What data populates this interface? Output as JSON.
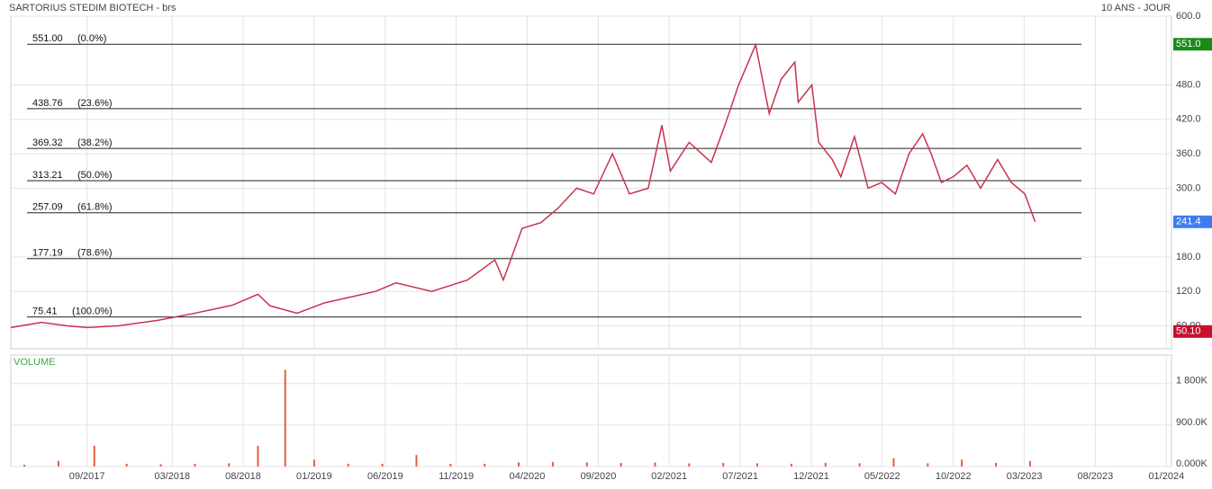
{
  "header": {
    "title": "SARTORIUS STEDIM BIOTECH - brs",
    "period": "10 ANS - JOUR"
  },
  "chart_data": [
    {
      "type": "line",
      "color": "#c8334d",
      "x": [
        2017.22,
        2017.4,
        2017.55,
        2017.67,
        2017.85,
        2018.09,
        2018.3,
        2018.52,
        2018.67,
        2018.74,
        2018.9,
        2019.06,
        2019.36,
        2019.48,
        2019.69,
        2019.9,
        2020.06,
        2020.11,
        2020.22,
        2020.33,
        2020.43,
        2020.54,
        2020.64,
        2020.75,
        2020.85,
        2020.96,
        2021.04,
        2021.09,
        2021.2,
        2021.33,
        2021.41,
        2021.49,
        2021.59,
        2021.67,
        2021.74,
        2021.82,
        2021.84,
        2021.92,
        2021.96,
        2022.04,
        2022.09,
        2022.17,
        2022.25,
        2022.33,
        2022.41,
        2022.49,
        2022.57,
        2022.62,
        2022.68,
        2022.75,
        2022.83,
        2022.91,
        2023.01,
        2023.09,
        2023.17,
        2023.23
      ],
      "values": [
        57,
        66,
        60,
        57,
        60,
        70,
        82,
        96,
        115,
        95,
        82,
        100,
        120,
        135,
        120,
        140,
        175,
        140,
        230,
        240,
        265,
        300,
        290,
        360,
        290,
        300,
        410,
        330,
        380,
        345,
        410,
        480,
        550,
        430,
        490,
        520,
        450,
        480,
        380,
        350,
        320,
        390,
        300,
        310,
        290,
        360,
        395,
        360,
        310,
        320,
        340,
        300,
        350,
        310,
        290,
        241.4
      ],
      "xlim": [
        2017.22,
        2024.03
      ],
      "ylim": [
        20,
        600
      ],
      "xticks": [
        {
          "value": 2017.667,
          "label": "09/2017"
        },
        {
          "value": 2018.167,
          "label": "03/2018"
        },
        {
          "value": 2018.583,
          "label": "08/2018"
        },
        {
          "value": 2019.0,
          "label": "01/2019"
        },
        {
          "value": 2019.417,
          "label": "06/2019"
        },
        {
          "value": 2019.833,
          "label": "11/2019"
        },
        {
          "value": 2020.25,
          "label": "04/2020"
        },
        {
          "value": 2020.667,
          "label": "09/2020"
        },
        {
          "value": 2021.083,
          "label": "02/2021"
        },
        {
          "value": 2021.5,
          "label": "07/2021"
        },
        {
          "value": 2021.917,
          "label": "12/2021"
        },
        {
          "value": 2022.333,
          "label": "05/2022"
        },
        {
          "value": 2022.75,
          "label": "10/2022"
        },
        {
          "value": 2023.167,
          "label": "03/2023"
        },
        {
          "value": 2023.583,
          "label": "08/2023"
        },
        {
          "value": 2024.0,
          "label": "01/2024"
        }
      ],
      "yticks": [
        {
          "value": 600,
          "label": "600.0"
        },
        {
          "value": 480,
          "label": "480.0"
        },
        {
          "value": 420,
          "label": "420.0"
        },
        {
          "value": 360,
          "label": "360.0"
        },
        {
          "value": 300,
          "label": "300.0"
        },
        {
          "value": 180,
          "label": "180.0"
        },
        {
          "value": 120,
          "label": "120.0"
        },
        {
          "value": 60,
          "label": "60.00"
        }
      ],
      "grid": true,
      "levels": [
        {
          "value": 551,
          "label": "551.00",
          "ratio": 0,
          "ratio_label": "(0.0%)"
        },
        {
          "value": 438.76,
          "label": "438.76",
          "ratio": 23.6,
          "ratio_label": "(23.6%)"
        },
        {
          "value": 369.32,
          "label": "369.32",
          "ratio": 38.2,
          "ratio_label": "(38.2%)"
        },
        {
          "value": 313.21,
          "label": "313.21",
          "ratio": 50,
          "ratio_label": "(50.0%)"
        },
        {
          "value": 257.09,
          "label": "257.09",
          "ratio": 61.8,
          "ratio_label": "(61.8%)"
        },
        {
          "value": 177.19,
          "label": "177.19",
          "ratio": 78.6,
          "ratio_label": "(78.6%)"
        },
        {
          "value": 75.41,
          "label": "75.41",
          "ratio": 100,
          "ratio_label": "(100.0%)"
        }
      ],
      "badges": [
        {
          "value": 551,
          "label": "551.0",
          "color": "#1a8a1a"
        },
        {
          "value": 241.4,
          "label": "241.4",
          "color": "#3d7cf0"
        },
        {
          "value": 50.1,
          "label": "50.10",
          "color": "#c8102e"
        }
      ]
    },
    {
      "type": "bar",
      "title": "VOLUME",
      "color": "#e2603a",
      "x": [
        2017.3,
        2017.5,
        2017.71,
        2017.9,
        2018.1,
        2018.3,
        2018.5,
        2018.67,
        2018.83,
        2019.0,
        2019.2,
        2019.4,
        2019.6,
        2019.8,
        2020.0,
        2020.2,
        2020.4,
        2020.6,
        2020.8,
        2021.0,
        2021.2,
        2021.4,
        2021.6,
        2021.8,
        2022.0,
        2022.2,
        2022.4,
        2022.6,
        2022.8,
        2023.0,
        2023.2
      ],
      "values": [
        40000,
        120000,
        450000,
        60000,
        50000,
        60000,
        70000,
        450000,
        2100000,
        150000,
        60000,
        60000,
        250000,
        60000,
        60000,
        90000,
        100000,
        90000,
        80000,
        90000,
        70000,
        80000,
        70000,
        60000,
        80000,
        70000,
        180000,
        70000,
        150000,
        80000,
        120000
      ],
      "xlim": [
        2017.22,
        2024.03
      ],
      "ylim": [
        0,
        2420000
      ],
      "yticks": [
        {
          "value": 1800000,
          "label": "1 800K"
        },
        {
          "value": 900000,
          "label": "900.0K"
        },
        {
          "value": 0,
          "label": "0.000K"
        }
      ]
    }
  ]
}
